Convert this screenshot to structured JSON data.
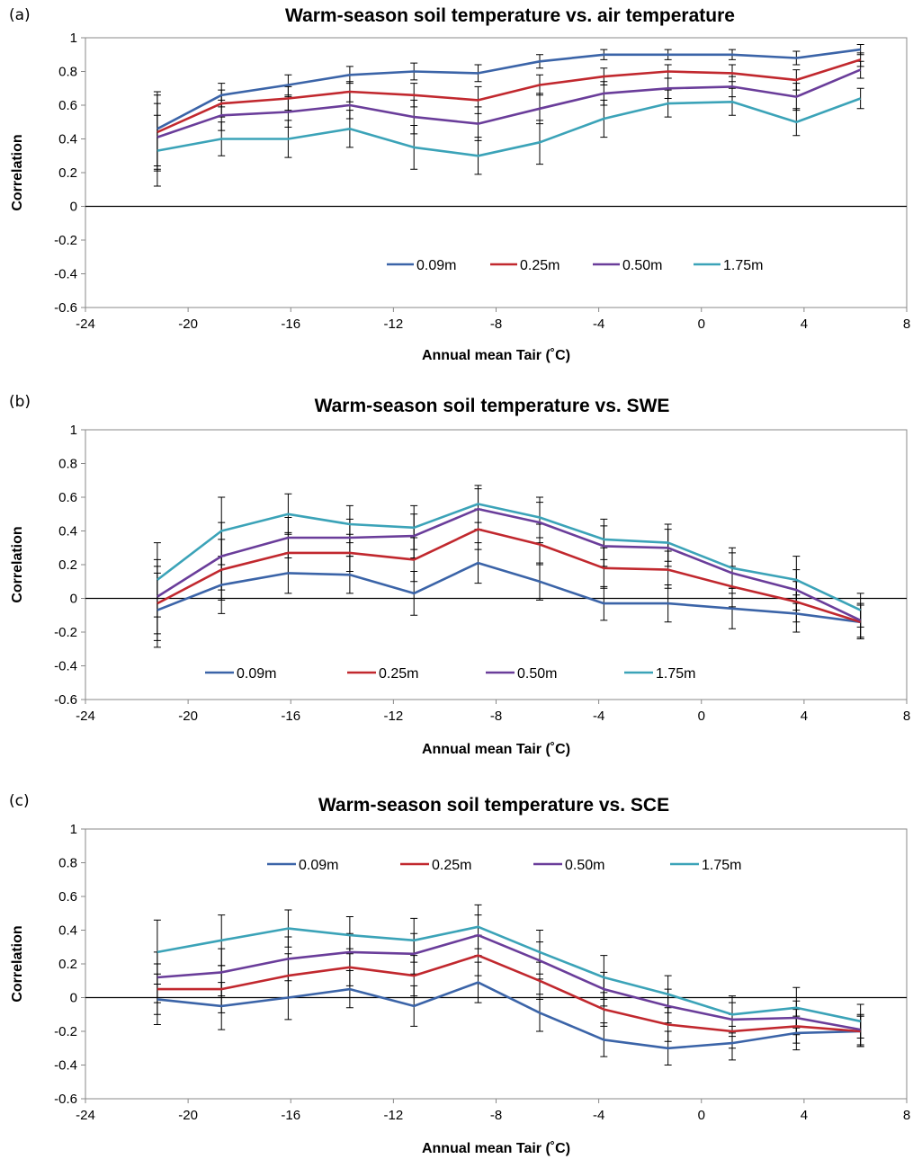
{
  "chart_data": [
    {
      "type": "line",
      "panel_label": "(a)",
      "title": "Warm-season soil temperature vs. air temperature",
      "xlabel": "Annual mean Tair (˚C)",
      "ylabel": "Correlation",
      "xlim": [
        -24,
        8
      ],
      "ylim": [
        -0.6,
        1
      ],
      "xticks": [
        "-24",
        "-20",
        "-16",
        "-12",
        "-8",
        "-4",
        "0",
        "4",
        "8"
      ],
      "yticks": [
        "-0.6",
        "-0.4",
        "-0.2",
        "0",
        "0.2",
        "0.4",
        "0.6",
        "0.8",
        "1"
      ],
      "grid": false,
      "zero_line": true,
      "legend_position": "inside-bottom-center",
      "x": [
        -21.2,
        -18.7,
        -16.1,
        -13.7,
        -11.2,
        -8.7,
        -6.3,
        -3.8,
        -1.3,
        1.2,
        3.7,
        6.2
      ],
      "series": [
        {
          "name": "0.09m",
          "color": "#3b64a8",
          "values": [
            0.46,
            0.66,
            0.72,
            0.78,
            0.8,
            0.79,
            0.86,
            0.9,
            0.9,
            0.9,
            0.88,
            0.93
          ],
          "errors": [
            0.22,
            0.07,
            0.06,
            0.05,
            0.05,
            0.05,
            0.04,
            0.03,
            0.03,
            0.03,
            0.04,
            0.03
          ]
        },
        {
          "name": "0.25m",
          "color": "#c1282e",
          "values": [
            0.44,
            0.61,
            0.64,
            0.68,
            0.66,
            0.63,
            0.72,
            0.77,
            0.8,
            0.79,
            0.75,
            0.87
          ],
          "errors": [
            0.22,
            0.08,
            0.07,
            0.06,
            0.07,
            0.08,
            0.06,
            0.05,
            0.04,
            0.05,
            0.06,
            0.04
          ]
        },
        {
          "name": "0.50m",
          "color": "#6a3d9a",
          "values": [
            0.41,
            0.54,
            0.56,
            0.6,
            0.53,
            0.49,
            0.58,
            0.67,
            0.7,
            0.71,
            0.65,
            0.81
          ],
          "errors": [
            0.2,
            0.09,
            0.09,
            0.08,
            0.1,
            0.1,
            0.09,
            0.07,
            0.06,
            0.06,
            0.08,
            0.05
          ]
        },
        {
          "name": "1.75m",
          "color": "#3ba3b8",
          "values": [
            0.33,
            0.4,
            0.4,
            0.46,
            0.35,
            0.3,
            0.38,
            0.52,
            0.61,
            0.62,
            0.5,
            0.64
          ],
          "errors": [
            0.21,
            0.1,
            0.11,
            0.11,
            0.13,
            0.11,
            0.13,
            0.11,
            0.08,
            0.08,
            0.08,
            0.06
          ]
        }
      ]
    },
    {
      "type": "line",
      "panel_label": "(b)",
      "title": "Warm-season soil temperature vs. SWE",
      "xlabel": "Annual mean Tair (˚C)",
      "ylabel": "Correlation",
      "xlim": [
        -24,
        8
      ],
      "ylim": [
        -0.6,
        1
      ],
      "xticks": [
        "-24",
        "-20",
        "-16",
        "-12",
        "-8",
        "-4",
        "0",
        "4",
        "8"
      ],
      "yticks": [
        "-0.6",
        "-0.4",
        "-0.2",
        "0",
        "0.2",
        "0.4",
        "0.6",
        "0.8",
        "1"
      ],
      "grid": false,
      "zero_line": true,
      "legend_position": "inside-bottom",
      "x": [
        -21.2,
        -18.7,
        -16.1,
        -13.7,
        -11.2,
        -8.7,
        -6.3,
        -3.8,
        -1.3,
        1.2,
        3.7,
        6.2
      ],
      "series": [
        {
          "name": "0.09m",
          "color": "#3b64a8",
          "values": [
            -0.07,
            0.08,
            0.15,
            0.14,
            0.03,
            0.21,
            0.1,
            -0.03,
            -0.03,
            -0.06,
            -0.09,
            -0.14
          ],
          "errors": [
            0.22,
            0.17,
            0.12,
            0.11,
            0.13,
            0.12,
            0.11,
            0.1,
            0.11,
            0.12,
            0.11,
            0.1
          ]
        },
        {
          "name": "0.25m",
          "color": "#c1282e",
          "values": [
            -0.03,
            0.17,
            0.27,
            0.27,
            0.23,
            0.41,
            0.32,
            0.18,
            0.17,
            0.07,
            -0.02,
            -0.14
          ],
          "errors": [
            0.22,
            0.18,
            0.12,
            0.11,
            0.13,
            0.12,
            0.12,
            0.12,
            0.11,
            0.12,
            0.12,
            0.1
          ]
        },
        {
          "name": "0.50m",
          "color": "#6a3d9a",
          "values": [
            0.01,
            0.25,
            0.36,
            0.36,
            0.37,
            0.53,
            0.45,
            0.31,
            0.3,
            0.15,
            0.05,
            -0.13
          ],
          "errors": [
            0.22,
            0.2,
            0.12,
            0.11,
            0.13,
            0.12,
            0.12,
            0.12,
            0.11,
            0.12,
            0.12,
            0.1
          ]
        },
        {
          "name": "1.75m",
          "color": "#3ba3b8",
          "values": [
            0.11,
            0.4,
            0.5,
            0.44,
            0.42,
            0.56,
            0.48,
            0.35,
            0.33,
            0.18,
            0.11,
            -0.07
          ],
          "errors": [
            0.22,
            0.2,
            0.12,
            0.11,
            0.13,
            0.11,
            0.12,
            0.12,
            0.11,
            0.12,
            0.14,
            0.1
          ]
        }
      ]
    },
    {
      "type": "line",
      "panel_label": "(c)",
      "title": "Warm-season soil temperature vs. SCE",
      "xlabel": "Annual mean Tair (˚C)",
      "ylabel": "Correlation",
      "xlim": [
        -24,
        8
      ],
      "ylim": [
        -0.6,
        1
      ],
      "xticks": [
        "-24",
        "-20",
        "-16",
        "-12",
        "-8",
        "-4",
        "0",
        "4",
        "8"
      ],
      "yticks": [
        "-0.6",
        "-0.4",
        "-0.2",
        "0",
        "0.2",
        "0.4",
        "0.6",
        "0.8",
        "1"
      ],
      "grid": false,
      "zero_line": true,
      "legend_position": "inside-top",
      "x": [
        -21.2,
        -18.7,
        -16.1,
        -13.7,
        -11.2,
        -8.7,
        -6.3,
        -3.8,
        -1.3,
        1.2,
        3.7,
        6.2
      ],
      "series": [
        {
          "name": "0.09m",
          "color": "#3b64a8",
          "values": [
            -0.01,
            -0.05,
            0.0,
            0.05,
            -0.05,
            0.09,
            -0.09,
            -0.25,
            -0.3,
            -0.27,
            -0.21,
            -0.2
          ],
          "errors": [
            0.15,
            0.14,
            0.13,
            0.11,
            0.12,
            0.12,
            0.11,
            0.1,
            0.1,
            0.1,
            0.1,
            0.09
          ]
        },
        {
          "name": "0.25m",
          "color": "#c1282e",
          "values": [
            0.05,
            0.05,
            0.13,
            0.18,
            0.13,
            0.25,
            0.1,
            -0.07,
            -0.16,
            -0.2,
            -0.17,
            -0.2
          ],
          "errors": [
            0.15,
            0.14,
            0.13,
            0.11,
            0.12,
            0.12,
            0.11,
            0.1,
            0.1,
            0.1,
            0.1,
            0.09
          ]
        },
        {
          "name": "0.50m",
          "color": "#6a3d9a",
          "values": [
            0.12,
            0.15,
            0.23,
            0.27,
            0.26,
            0.37,
            0.22,
            0.05,
            -0.05,
            -0.13,
            -0.12,
            -0.19
          ],
          "errors": [
            0.15,
            0.14,
            0.13,
            0.11,
            0.12,
            0.12,
            0.11,
            0.1,
            0.1,
            0.1,
            0.1,
            0.09
          ]
        },
        {
          "name": "1.75m",
          "color": "#3ba3b8",
          "values": [
            0.27,
            0.34,
            0.41,
            0.37,
            0.34,
            0.42,
            0.27,
            0.12,
            0.02,
            -0.1,
            -0.06,
            -0.14
          ],
          "errors": [
            0.19,
            0.15,
            0.11,
            0.11,
            0.13,
            0.13,
            0.13,
            0.13,
            0.11,
            0.11,
            0.12,
            0.1
          ]
        }
      ]
    }
  ]
}
